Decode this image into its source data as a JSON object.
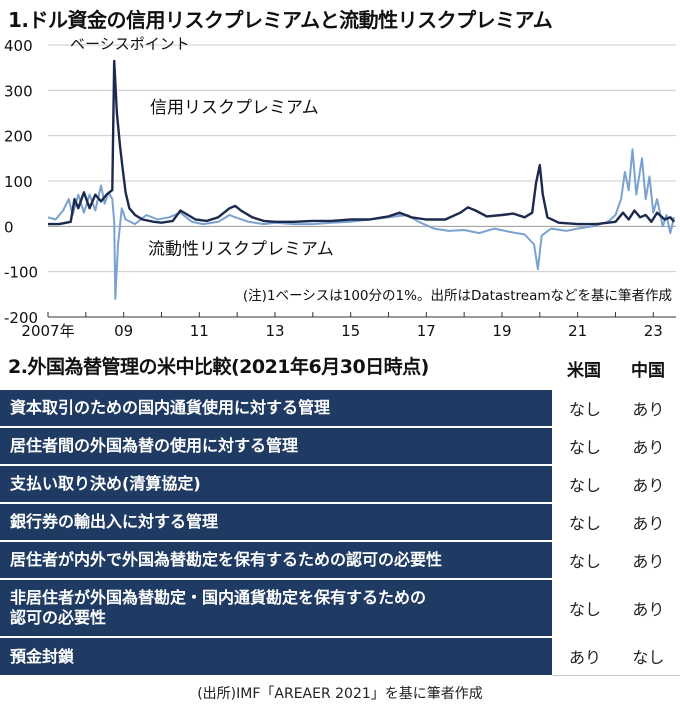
{
  "section1": {
    "title": "1.ドル資金の信用リスクプレミアムと流動性リスクプレミアム"
  },
  "chart_data": {
    "type": "line",
    "unit_label": "ベーシスポイント",
    "ylim": [
      -200,
      400
    ],
    "yticks": [
      400,
      300,
      200,
      100,
      0,
      -100,
      -200
    ],
    "xlim": [
      2007,
      2023.6
    ],
    "xtick_labels": [
      {
        "x": 2007,
        "label": "2007年"
      },
      {
        "x": 2009,
        "label": "09"
      },
      {
        "x": 2011,
        "label": "11"
      },
      {
        "x": 2013,
        "label": "13"
      },
      {
        "x": 2015,
        "label": "15"
      },
      {
        "x": 2017,
        "label": "17"
      },
      {
        "x": 2019,
        "label": "19"
      },
      {
        "x": 2021,
        "label": "21"
      },
      {
        "x": 2023,
        "label": "23"
      }
    ],
    "note": "(注)1ベーシスは100分の1%。出所はDatastreamなどを基に筆者作成",
    "series": [
      {
        "name": "信用リスクプレミアム",
        "color": "#1c2a4d",
        "points": [
          [
            2007.0,
            5
          ],
          [
            2007.3,
            5
          ],
          [
            2007.6,
            10
          ],
          [
            2007.7,
            60
          ],
          [
            2007.8,
            40
          ],
          [
            2007.95,
            75
          ],
          [
            2008.1,
            40
          ],
          [
            2008.25,
            70
          ],
          [
            2008.4,
            55
          ],
          [
            2008.55,
            70
          ],
          [
            2008.7,
            80
          ],
          [
            2008.75,
            365
          ],
          [
            2008.82,
            250
          ],
          [
            2008.9,
            180
          ],
          [
            2008.97,
            130
          ],
          [
            2009.05,
            75
          ],
          [
            2009.15,
            40
          ],
          [
            2009.3,
            25
          ],
          [
            2009.5,
            15
          ],
          [
            2009.8,
            10
          ],
          [
            2010.0,
            8
          ],
          [
            2010.3,
            12
          ],
          [
            2010.5,
            35
          ],
          [
            2010.7,
            25
          ],
          [
            2010.9,
            15
          ],
          [
            2011.2,
            12
          ],
          [
            2011.5,
            20
          ],
          [
            2011.8,
            40
          ],
          [
            2011.95,
            45
          ],
          [
            2012.1,
            35
          ],
          [
            2012.4,
            20
          ],
          [
            2012.7,
            12
          ],
          [
            2013.0,
            10
          ],
          [
            2013.5,
            10
          ],
          [
            2014.0,
            12
          ],
          [
            2014.5,
            12
          ],
          [
            2015.0,
            15
          ],
          [
            2015.5,
            15
          ],
          [
            2016.0,
            22
          ],
          [
            2016.3,
            30
          ],
          [
            2016.6,
            20
          ],
          [
            2017.0,
            15
          ],
          [
            2017.5,
            15
          ],
          [
            2017.9,
            30
          ],
          [
            2018.1,
            42
          ],
          [
            2018.3,
            35
          ],
          [
            2018.6,
            22
          ],
          [
            2019.0,
            25
          ],
          [
            2019.3,
            28
          ],
          [
            2019.6,
            20
          ],
          [
            2019.8,
            30
          ],
          [
            2019.9,
            95
          ],
          [
            2020.0,
            135
          ],
          [
            2020.08,
            70
          ],
          [
            2020.2,
            20
          ],
          [
            2020.5,
            8
          ],
          [
            2021.0,
            5
          ],
          [
            2021.5,
            5
          ],
          [
            2021.8,
            8
          ],
          [
            2022.0,
            10
          ],
          [
            2022.2,
            30
          ],
          [
            2022.35,
            15
          ],
          [
            2022.5,
            35
          ],
          [
            2022.65,
            20
          ],
          [
            2022.8,
            25
          ],
          [
            2022.95,
            10
          ],
          [
            2023.1,
            30
          ],
          [
            2023.3,
            15
          ],
          [
            2023.45,
            20
          ],
          [
            2023.55,
            10
          ]
        ]
      },
      {
        "name": "流動性リスクプレミアム",
        "color": "#7aa2d0",
        "points": [
          [
            2007.0,
            20
          ],
          [
            2007.2,
            15
          ],
          [
            2007.4,
            35
          ],
          [
            2007.55,
            60
          ],
          [
            2007.65,
            25
          ],
          [
            2007.8,
            70
          ],
          [
            2007.95,
            30
          ],
          [
            2008.1,
            70
          ],
          [
            2008.25,
            35
          ],
          [
            2008.4,
            90
          ],
          [
            2008.5,
            50
          ],
          [
            2008.6,
            75
          ],
          [
            2008.7,
            60
          ],
          [
            2008.75,
            10
          ],
          [
            2008.78,
            -160
          ],
          [
            2008.85,
            -40
          ],
          [
            2008.95,
            40
          ],
          [
            2009.05,
            15
          ],
          [
            2009.3,
            5
          ],
          [
            2009.6,
            25
          ],
          [
            2009.9,
            15
          ],
          [
            2010.2,
            20
          ],
          [
            2010.5,
            30
          ],
          [
            2010.8,
            10
          ],
          [
            2011.1,
            5
          ],
          [
            2011.5,
            10
          ],
          [
            2011.8,
            25
          ],
          [
            2011.95,
            20
          ],
          [
            2012.3,
            10
          ],
          [
            2012.7,
            5
          ],
          [
            2013.0,
            8
          ],
          [
            2013.5,
            5
          ],
          [
            2014.0,
            5
          ],
          [
            2014.5,
            8
          ],
          [
            2015.0,
            10
          ],
          [
            2015.5,
            15
          ],
          [
            2016.0,
            20
          ],
          [
            2016.5,
            25
          ],
          [
            2016.8,
            10
          ],
          [
            2017.2,
            -5
          ],
          [
            2017.6,
            -10
          ],
          [
            2018.0,
            -8
          ],
          [
            2018.4,
            -15
          ],
          [
            2018.8,
            -5
          ],
          [
            2019.2,
            -12
          ],
          [
            2019.6,
            -18
          ],
          [
            2019.85,
            -40
          ],
          [
            2019.95,
            -95
          ],
          [
            2020.05,
            -20
          ],
          [
            2020.3,
            -5
          ],
          [
            2020.7,
            -10
          ],
          [
            2021.0,
            -5
          ],
          [
            2021.4,
            0
          ],
          [
            2021.8,
            10
          ],
          [
            2022.0,
            25
          ],
          [
            2022.15,
            60
          ],
          [
            2022.25,
            120
          ],
          [
            2022.35,
            80
          ],
          [
            2022.45,
            170
          ],
          [
            2022.55,
            70
          ],
          [
            2022.7,
            150
          ],
          [
            2022.8,
            60
          ],
          [
            2022.9,
            110
          ],
          [
            2023.0,
            30
          ],
          [
            2023.1,
            60
          ],
          [
            2023.25,
            0
          ],
          [
            2023.35,
            25
          ],
          [
            2023.45,
            -15
          ],
          [
            2023.55,
            20
          ]
        ]
      }
    ]
  },
  "section2": {
    "title": "2.外国為替管理の米中比較(2021年6月30日時点)",
    "columns": [
      "米国",
      "中国"
    ],
    "rows": [
      {
        "item": "資本取引のための国内通貨使用に対する管理",
        "us": "なし",
        "cn": "あり"
      },
      {
        "item": "居住者間の外国為替の使用に対する管理",
        "us": "なし",
        "cn": "あり"
      },
      {
        "item": "支払い取り決め(清算協定)",
        "us": "なし",
        "cn": "あり"
      },
      {
        "item": "銀行券の輸出入に対する管理",
        "us": "なし",
        "cn": "あり"
      },
      {
        "item": "居住者が内外で外国為替勘定を保有するための認可の必要性",
        "us": "なし",
        "cn": "あり"
      },
      {
        "item": "非居住者が外国為替勘定・国内通貨勘定を保有するための\n認可の必要性",
        "us": "なし",
        "cn": "あり"
      },
      {
        "item": "預金封鎖",
        "us": "あり",
        "cn": "なし"
      }
    ],
    "source": "(出所)IMF「AREAER 2021」を基に筆者作成"
  }
}
